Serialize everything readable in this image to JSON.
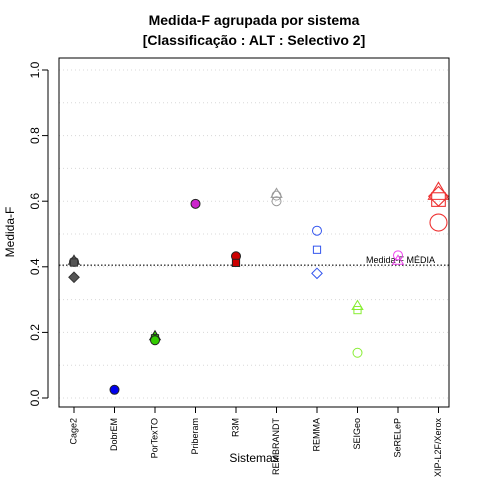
{
  "chart_data": {
    "type": "scatter",
    "title": "Medida-F agrupada por sistema",
    "subtitle": "[Classificação : ALT : Selectivo 2]",
    "xlabel": "Sistemas",
    "ylabel": "Medida-F",
    "ylim": [
      0,
      1
    ],
    "yticks": [
      "0.0",
      "0.2",
      "0.4",
      "0.6",
      "0.8",
      "1.0"
    ],
    "grid": "horizontal-dotted",
    "categories": [
      "Cage2",
      "DobrEM",
      "PorTexTO",
      "Priberam",
      "R3M",
      "REMBRANDT",
      "REMMA",
      "SEIGeo",
      "SeRELeP",
      "XIP-L2F/Xerox"
    ],
    "reference_line": {
      "label": "Medida-F MÉDIA",
      "value": 0.405
    },
    "points": [
      {
        "category": "Cage2",
        "y": 0.415,
        "shape": "circle",
        "color": "#555555",
        "filled": true
      },
      {
        "category": "Cage2",
        "y": 0.418,
        "shape": "triangle",
        "color": "#555555",
        "filled": true
      },
      {
        "category": "Cage2",
        "y": 0.413,
        "shape": "square",
        "color": "#555555",
        "filled": true
      },
      {
        "category": "Cage2",
        "y": 0.368,
        "shape": "diamond",
        "color": "#555555",
        "filled": true
      },
      {
        "category": "DobrEM",
        "y": 0.025,
        "shape": "circle",
        "color": "#0000ee",
        "filled": true
      },
      {
        "category": "PorTexTO",
        "y": 0.188,
        "shape": "triangle",
        "color": "#33cc00",
        "filled": true
      },
      {
        "category": "PorTexTO",
        "y": 0.182,
        "shape": "square",
        "color": "#33cc00",
        "filled": true
      },
      {
        "category": "PorTexTO",
        "y": 0.176,
        "shape": "circle",
        "color": "#33cc00",
        "filled": true
      },
      {
        "category": "Priberam",
        "y": 0.592,
        "shape": "circle",
        "color": "#cc22cc",
        "filled": true
      },
      {
        "category": "R3M",
        "y": 0.432,
        "shape": "circle",
        "color": "#cc0000",
        "filled": true
      },
      {
        "category": "R3M",
        "y": 0.412,
        "shape": "square",
        "color": "#cc0000",
        "filled": true
      },
      {
        "category": "REMBRANDT",
        "y": 0.622,
        "shape": "triangle",
        "color": "#999999",
        "filled": false
      },
      {
        "category": "REMBRANDT",
        "y": 0.617,
        "shape": "circle",
        "color": "#999999",
        "filled": false
      },
      {
        "category": "REMBRANDT",
        "y": 0.6,
        "shape": "circle",
        "color": "#999999",
        "filled": false
      },
      {
        "category": "REMMA",
        "y": 0.51,
        "shape": "circle",
        "color": "#3355ee",
        "filled": false
      },
      {
        "category": "REMMA",
        "y": 0.452,
        "shape": "square",
        "color": "#3355ee",
        "filled": false
      },
      {
        "category": "REMMA",
        "y": 0.38,
        "shape": "diamond",
        "color": "#3355ee",
        "filled": false
      },
      {
        "category": "SEIGeo",
        "y": 0.28,
        "shape": "triangle",
        "color": "#88ee33",
        "filled": false
      },
      {
        "category": "SEIGeo",
        "y": 0.268,
        "shape": "square",
        "color": "#88ee33",
        "filled": false
      },
      {
        "category": "SEIGeo",
        "y": 0.138,
        "shape": "circle",
        "color": "#88ee33",
        "filled": false
      },
      {
        "category": "SeRELeP",
        "y": 0.435,
        "shape": "circle",
        "color": "#ee44ee",
        "filled": false
      },
      {
        "category": "SeRELeP",
        "y": 0.418,
        "shape": "triangle",
        "color": "#ee44ee",
        "filled": false
      },
      {
        "category": "XIP-L2F/Xerox",
        "y": 0.625,
        "shape": "triangle",
        "color": "#ee3333",
        "filled": false,
        "size": "large"
      },
      {
        "category": "XIP-L2F/Xerox",
        "y": 0.615,
        "shape": "diamond",
        "color": "#ee3333",
        "filled": false,
        "size": "large"
      },
      {
        "category": "XIP-L2F/Xerox",
        "y": 0.605,
        "shape": "square",
        "color": "#ee3333",
        "filled": false,
        "size": "large"
      },
      {
        "category": "XIP-L2F/Xerox",
        "y": 0.535,
        "shape": "circle",
        "color": "#ee3333",
        "filled": false,
        "size": "large"
      }
    ]
  }
}
